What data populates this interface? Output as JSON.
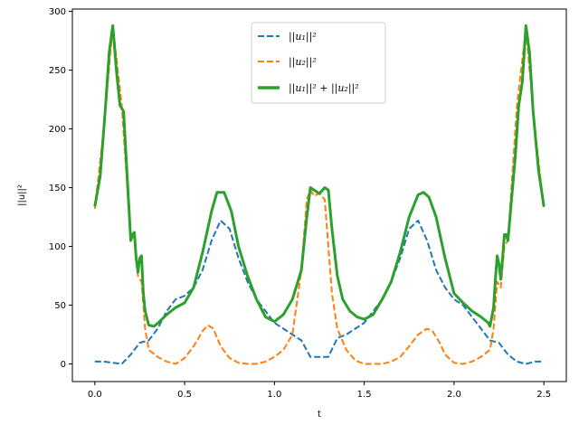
{
  "chart_data": {
    "type": "line",
    "xlabel": "t",
    "ylabel": "||u||²",
    "xlim": [
      -0.125,
      2.625
    ],
    "ylim": [
      -15,
      302
    ],
    "xticks": [
      0.0,
      0.5,
      1.0,
      1.5,
      2.0,
      2.5
    ],
    "xtick_labels": [
      "0.0",
      "0.5",
      "1.0",
      "1.5",
      "2.0",
      "2.5"
    ],
    "yticks": [
      0,
      50,
      100,
      150,
      200,
      250,
      300
    ],
    "ytick_labels": [
      "0",
      "50",
      "100",
      "150",
      "200",
      "250",
      "300"
    ],
    "grid": false,
    "legend_position": "top-center",
    "series": [
      {
        "name": "||u₁||²",
        "color": "#1f77b4",
        "style": "dashed",
        "x": [
          0.0,
          0.05,
          0.1,
          0.15,
          0.2,
          0.25,
          0.3,
          0.35,
          0.4,
          0.45,
          0.5,
          0.55,
          0.6,
          0.65,
          0.7,
          0.75,
          0.8,
          0.85,
          0.9,
          0.95,
          1.0,
          1.05,
          1.1,
          1.15,
          1.2,
          1.25,
          1.3,
          1.35,
          1.4,
          1.45,
          1.5,
          1.55,
          1.6,
          1.65,
          1.7,
          1.75,
          1.8,
          1.85,
          1.9,
          1.95,
          2.0,
          2.05,
          2.1,
          2.15,
          2.2,
          2.25,
          2.3,
          2.35,
          2.4,
          2.45,
          2.5
        ],
        "y": [
          2,
          2,
          1,
          0,
          8,
          18,
          20,
          30,
          45,
          55,
          58,
          65,
          80,
          105,
          122,
          115,
          90,
          70,
          55,
          45,
          35,
          30,
          25,
          20,
          6,
          6,
          6,
          22,
          25,
          30,
          35,
          45,
          55,
          70,
          90,
          115,
          122,
          105,
          80,
          65,
          55,
          50,
          40,
          30,
          20,
          18,
          8,
          2,
          0,
          2,
          2
        ]
      },
      {
        "name": "||u₂||²",
        "color": "#ff7f0e",
        "style": "dashed",
        "x": [
          0.0,
          0.05,
          0.1,
          0.15,
          0.2,
          0.22,
          0.24,
          0.26,
          0.28,
          0.3,
          0.35,
          0.4,
          0.45,
          0.5,
          0.55,
          0.6,
          0.63,
          0.66,
          0.7,
          0.75,
          0.8,
          0.85,
          0.9,
          0.95,
          1.0,
          1.05,
          1.1,
          1.15,
          1.18,
          1.2,
          1.22,
          1.25,
          1.28,
          1.3,
          1.32,
          1.35,
          1.4,
          1.45,
          1.5,
          1.55,
          1.6,
          1.65,
          1.7,
          1.75,
          1.8,
          1.85,
          1.88,
          1.92,
          1.95,
          2.0,
          2.05,
          2.1,
          2.15,
          2.2,
          2.22,
          2.24,
          2.26,
          2.28,
          2.3,
          2.35,
          2.4,
          2.45,
          2.5
        ],
        "y": [
          132,
          200,
          288,
          220,
          105,
          110,
          75,
          70,
          30,
          12,
          6,
          2,
          0,
          5,
          15,
          28,
          33,
          30,
          15,
          5,
          1,
          0,
          0,
          2,
          6,
          12,
          25,
          80,
          140,
          148,
          143,
          145,
          140,
          100,
          60,
          30,
          12,
          3,
          0,
          0,
          0,
          2,
          6,
          15,
          25,
          30,
          28,
          18,
          8,
          1,
          0,
          2,
          6,
          12,
          30,
          70,
          65,
          100,
          105,
          220,
          285,
          200,
          132
        ]
      },
      {
        "name": "||u₁||² + ||u₂||²",
        "color": "#2ca02c",
        "style": "solid",
        "x": [
          0.0,
          0.03,
          0.06,
          0.08,
          0.1,
          0.12,
          0.14,
          0.16,
          0.18,
          0.2,
          0.21,
          0.22,
          0.23,
          0.24,
          0.25,
          0.26,
          0.27,
          0.28,
          0.3,
          0.33,
          0.36,
          0.4,
          0.45,
          0.5,
          0.55,
          0.6,
          0.65,
          0.68,
          0.72,
          0.76,
          0.8,
          0.85,
          0.9,
          0.95,
          1.0,
          1.05,
          1.1,
          1.15,
          1.18,
          1.2,
          1.22,
          1.25,
          1.28,
          1.3,
          1.32,
          1.35,
          1.38,
          1.42,
          1.46,
          1.5,
          1.55,
          1.6,
          1.65,
          1.7,
          1.75,
          1.8,
          1.83,
          1.86,
          1.9,
          1.95,
          2.0,
          2.05,
          2.1,
          2.15,
          2.19,
          2.2,
          2.22,
          2.23,
          2.24,
          2.25,
          2.26,
          2.27,
          2.28,
          2.29,
          2.3,
          2.32,
          2.34,
          2.36,
          2.38,
          2.4,
          2.42,
          2.44,
          2.47,
          2.5
        ],
        "y": [
          134,
          160,
          220,
          265,
          288,
          250,
          220,
          215,
          160,
          105,
          110,
          112,
          90,
          78,
          90,
          92,
          60,
          45,
          33,
          32,
          36,
          42,
          48,
          52,
          65,
          95,
          130,
          146,
          146,
          130,
          100,
          75,
          55,
          40,
          36,
          42,
          55,
          80,
          125,
          150,
          148,
          145,
          150,
          148,
          115,
          75,
          55,
          45,
          40,
          38,
          42,
          55,
          70,
          95,
          125,
          144,
          146,
          142,
          125,
          90,
          60,
          52,
          45,
          40,
          35,
          32,
          48,
          72,
          92,
          85,
          72,
          90,
          110,
          110,
          105,
          140,
          175,
          220,
          240,
          288,
          265,
          215,
          165,
          134
        ]
      }
    ]
  }
}
